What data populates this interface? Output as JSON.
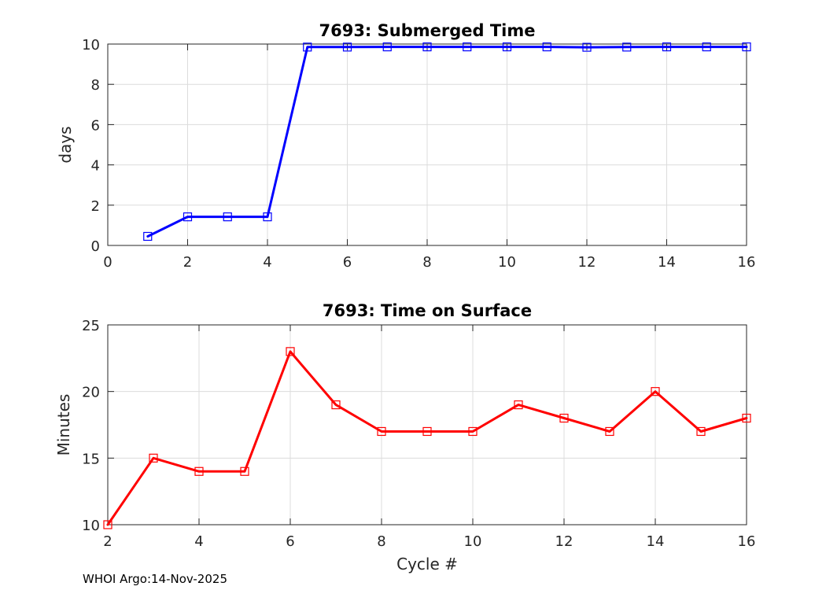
{
  "footer": "WHOI Argo:14-Nov-2025",
  "chart_data": [
    {
      "type": "line",
      "title": "7693: Submerged Time",
      "xlabel": "",
      "ylabel": "days",
      "xlim": [
        0,
        16
      ],
      "ylim": [
        0,
        10
      ],
      "xticks": [
        0,
        2,
        4,
        6,
        8,
        10,
        12,
        14,
        16
      ],
      "yticks": [
        0,
        2,
        4,
        6,
        8,
        10
      ],
      "grid": true,
      "color": "#0000ff",
      "marker": "square",
      "series": [
        {
          "name": "Submerged Time",
          "x": [
            1,
            2,
            3,
            4,
            5,
            6,
            7,
            8,
            9,
            10,
            11,
            12,
            13,
            14,
            15,
            16
          ],
          "y": [
            0.45,
            1.42,
            1.42,
            1.42,
            9.85,
            9.85,
            9.86,
            9.86,
            9.86,
            9.86,
            9.86,
            9.84,
            9.85,
            9.86,
            9.86,
            9.86
          ]
        }
      ]
    },
    {
      "type": "line",
      "title": "7693: Time on Surface",
      "xlabel": "Cycle #",
      "ylabel": "Minutes",
      "xlim": [
        2,
        16
      ],
      "ylim": [
        10,
        25
      ],
      "xticks": [
        2,
        4,
        6,
        8,
        10,
        12,
        14,
        16
      ],
      "yticks": [
        10,
        15,
        20,
        25
      ],
      "grid": true,
      "color": "#ff0000",
      "marker": "square",
      "series": [
        {
          "name": "Time on Surface",
          "x": [
            2,
            3,
            4,
            5,
            6,
            7,
            8,
            9,
            10,
            11,
            12,
            13,
            14,
            15,
            16
          ],
          "y": [
            10,
            15,
            14,
            14,
            23,
            19,
            17,
            17,
            17,
            19,
            18,
            17,
            20,
            17,
            18
          ]
        }
      ]
    }
  ]
}
